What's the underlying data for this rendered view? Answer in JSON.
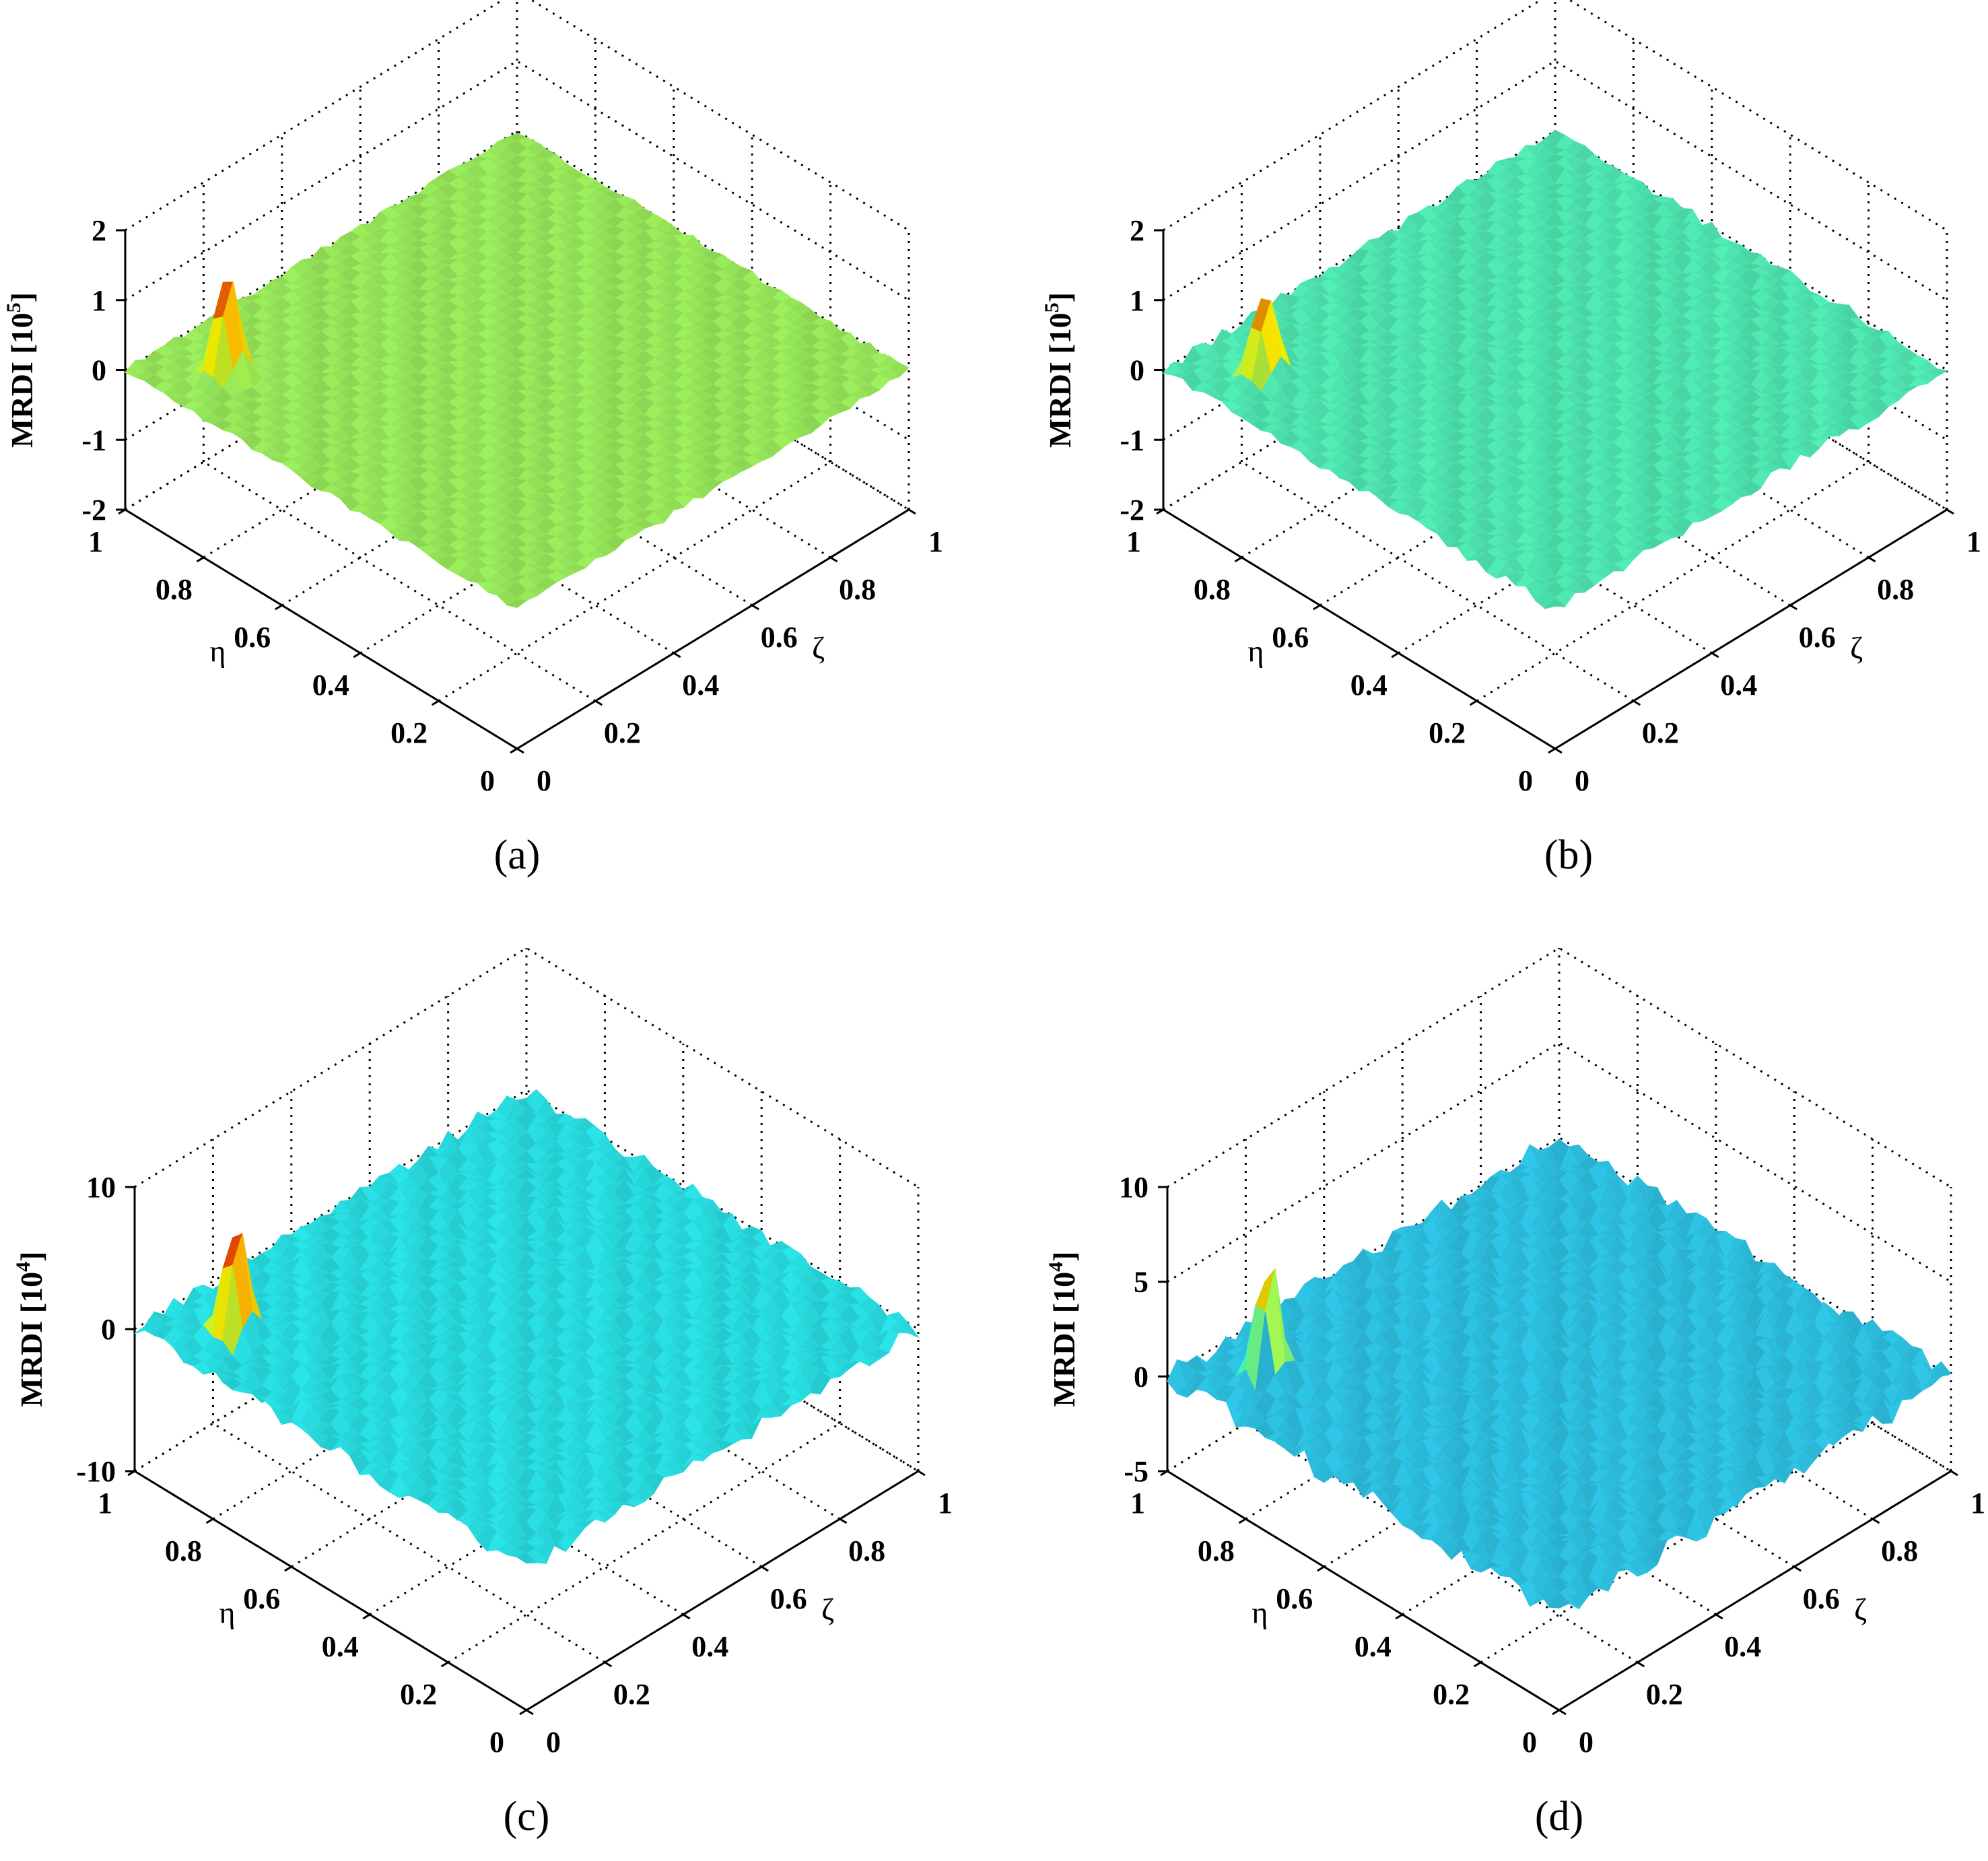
{
  "figure": {
    "charts": [
      {
        "caption": "(a)",
        "zlabel_text": "MRDI [10",
        "zlabel_exp": "5",
        "zlabel_close": "]"
      },
      {
        "caption": "(b)",
        "zlabel_text": "MRDI [10",
        "zlabel_exp": "5",
        "zlabel_close": "]"
      },
      {
        "caption": "(c)",
        "zlabel_text": "MRDI [10",
        "zlabel_exp": "4",
        "zlabel_close": "]"
      },
      {
        "caption": "(d)",
        "zlabel_text": "MRDI [10",
        "zlabel_exp": "4",
        "zlabel_close": "]"
      }
    ]
  },
  "chart_data": [
    {
      "type": "surface",
      "title": "",
      "caption": "(a)",
      "xlabel": "ζ",
      "ylabel": "η",
      "zlabel": "MRDI [10^5]",
      "xlim": [
        0,
        1
      ],
      "ylim": [
        0,
        1
      ],
      "zlim": [
        -2,
        2
      ],
      "xticks": [
        "0",
        "0.2",
        "0.4",
        "0.6",
        "0.8",
        "1"
      ],
      "yticks": [
        "0",
        "0.2",
        "0.4",
        "0.6",
        "0.8",
        "1"
      ],
      "zticks": [
        "-2",
        "-1",
        "0",
        "1",
        "2"
      ],
      "grid": true,
      "baseline": 0.0,
      "noise_amplitude": 0.05,
      "surface_color": "#9ef25e",
      "peak": {
        "x": 0.12,
        "y": 0.86,
        "z": 1.6
      }
    },
    {
      "type": "surface",
      "title": "",
      "caption": "(b)",
      "xlabel": "ζ",
      "ylabel": "η",
      "zlabel": "MRDI [10^5]",
      "xlim": [
        0,
        1
      ],
      "ylim": [
        0,
        1
      ],
      "zlim": [
        -2,
        2
      ],
      "xticks": [
        "0",
        "0.2",
        "0.4",
        "0.6",
        "0.8",
        "1"
      ],
      "yticks": [
        "0",
        "0.2",
        "0.4",
        "0.6",
        "0.8",
        "1"
      ],
      "zticks": [
        "-2",
        "-1",
        "0",
        "1",
        "2"
      ],
      "grid": true,
      "baseline": 0.0,
      "noise_amplitude": 0.08,
      "surface_color": "#52f0b8",
      "peak": {
        "x": 0.12,
        "y": 0.86,
        "z": 1.3
      }
    },
    {
      "type": "surface",
      "title": "",
      "caption": "(c)",
      "xlabel": "ζ",
      "ylabel": "η",
      "zlabel": "MRDI [10^4]",
      "xlim": [
        0,
        1
      ],
      "ylim": [
        0,
        1
      ],
      "zlim": [
        -10,
        10
      ],
      "xticks": [
        "0",
        "0.2",
        "0.4",
        "0.6",
        "0.8",
        "1"
      ],
      "yticks": [
        "0",
        "0.2",
        "0.4",
        "0.6",
        "0.8",
        "1"
      ],
      "zticks": [
        "-10",
        "0",
        "10"
      ],
      "grid": true,
      "baseline": 0.0,
      "noise_amplitude": 0.6,
      "surface_color": "#2ae6ea",
      "peak": {
        "x": 0.12,
        "y": 0.86,
        "z": 8.5
      }
    },
    {
      "type": "surface",
      "title": "",
      "caption": "(d)",
      "xlabel": "ζ",
      "ylabel": "η",
      "zlabel": "MRDI [10^4]",
      "xlim": [
        0,
        1
      ],
      "ylim": [
        0,
        1
      ],
      "zlim": [
        -5,
        10
      ],
      "xticks": [
        "0",
        "0.2",
        "0.4",
        "0.6",
        "0.8",
        "1"
      ],
      "yticks": [
        "0",
        "0.2",
        "0.4",
        "0.6",
        "0.8",
        "1"
      ],
      "zticks": [
        "-5",
        "0",
        "5",
        "10"
      ],
      "grid": true,
      "baseline": 0.0,
      "noise_amplitude": 0.6,
      "surface_color": "#2fc8ea",
      "peak": {
        "x": 0.12,
        "y": 0.86,
        "z": 7.0
      }
    }
  ]
}
